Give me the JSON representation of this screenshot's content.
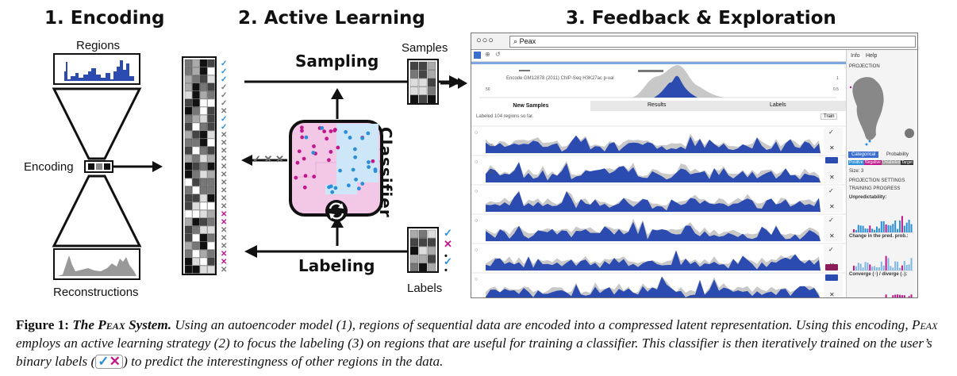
{
  "sections": {
    "encoding_title": "1. Encoding",
    "active_learning_title": "2. Active Learning",
    "feedback_title": "3. Feedback & Exploration"
  },
  "encoding": {
    "regions_label": "Regions",
    "encoding_label": "Encoding",
    "reconstructions_label": "Reconstructions"
  },
  "active_learning": {
    "sampling_label": "Sampling",
    "labeling_label": "Labeling",
    "samples_label": "Samples",
    "labels_label": "Labels",
    "classifier_label": "Classifier",
    "rejected_marks": "✓ ✕ ✕"
  },
  "browser": {
    "window_dots": "○○○",
    "address": "Peax",
    "track_title": "Encode GM12878 (2011) ChIP-Seq H3K27ac p-val",
    "tabs": [
      "New Samples",
      "Results",
      "Labels"
    ],
    "status": "Labeled 104 regions so far.",
    "train_button": "Train",
    "side_tabs": [
      "Info",
      "Help"
    ],
    "side_items": [
      "PROJECTION",
      "Categorical",
      "Probability",
      "Positive",
      "Negative",
      "Unlabeled",
      "Target",
      "Size: 3",
      "PROJECTION SETTINGS",
      "TRAINING PROGRESS",
      "Unpredictability:",
      "Change in the pred. prob.:",
      "Converge (↑) / diverge (↓):"
    ],
    "axis_values": [
      "20",
      "40",
      "50",
      "0.5",
      "1"
    ]
  },
  "caption": {
    "figure": "Figure 1:",
    "title_pre": "The",
    "title_name": "Peax",
    "title_post": "System.",
    "text1": "Using an autoencoder model (1), regions of sequential data are encoded into a compressed latent representation. Using this encoding,",
    "name2": "Peax",
    "text2": "employs an active learning strategy (2) to focus the labeling (3) on regions that are useful for training a classifier. This classifier is then iteratively trained on the user’s binary labels (",
    "mark_yes": "✓",
    "mark_no": "✕",
    "text3": ") to predict the interestingness of other regions in the data."
  },
  "colors": {
    "blue": "#2a8fd8",
    "magenta": "#c0178a",
    "track_blue": "#2c4bb0",
    "track_gray": "#c8c8c8",
    "pink_region": "#f2c8e6",
    "light_blue_region": "#cde7f8"
  }
}
